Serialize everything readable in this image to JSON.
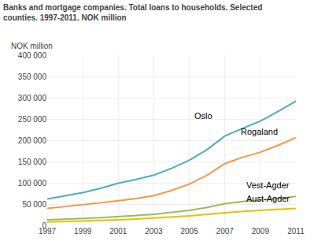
{
  "chart_data": {
    "type": "line",
    "title": "Banks and mortgage companies. Total loans to households. Selected\ncounties. 1997-2011. NOK million",
    "ylabel": "NOK million",
    "x": [
      1997,
      1998,
      1999,
      2000,
      2001,
      2002,
      2003,
      2004,
      2005,
      2006,
      2007,
      2008,
      2009,
      2010,
      2011
    ],
    "series": [
      {
        "name": "Oslo",
        "color": "#4bacc6",
        "values": [
          62000,
          69000,
          77000,
          87000,
          99000,
          108000,
          118000,
          134000,
          153000,
          178000,
          210000,
          228000,
          245000,
          268000,
          292000
        ]
      },
      {
        "name": "Rogaland",
        "color": "#f79646",
        "values": [
          40000,
          44000,
          48000,
          53000,
          58000,
          63000,
          70000,
          82000,
          97000,
          118000,
          145000,
          160000,
          172000,
          188000,
          206000
        ]
      },
      {
        "name": "Vest-Agder",
        "color": "#9bbb59",
        "values": [
          13000,
          14000,
          16000,
          18000,
          20000,
          23000,
          26000,
          30000,
          35000,
          42000,
          51000,
          56000,
          59000,
          63000,
          68000
        ]
      },
      {
        "name": "Aust-Agder",
        "color": "#e8c000",
        "values": [
          8000,
          9000,
          10000,
          11000,
          13000,
          15000,
          17000,
          19000,
          22000,
          26000,
          30000,
          33000,
          35000,
          37000,
          40000
        ]
      }
    ],
    "annotations": [
      {
        "text": "Oslo",
        "x": 2005.2,
        "y": 242000
      },
      {
        "text": "Rogaland",
        "x": 2007.8,
        "y": 205000
      },
      {
        "text": "Vest-Agder",
        "x": 2008.1,
        "y": 79000
      },
      {
        "text": "Aust-Agder",
        "x": 2008.1,
        "y": 48000
      }
    ],
    "xlim": [
      1997,
      2011
    ],
    "xticks": [
      1997,
      1999,
      2001,
      2003,
      2005,
      2007,
      2009,
      2011
    ],
    "ylim": [
      0,
      400000
    ],
    "yticks": [
      0,
      {
        "value": 50000,
        "label": "50 000"
      },
      {
        "value": 100000,
        "label": "100 000"
      },
      {
        "value": 150000,
        "label": "150 000"
      },
      {
        "value": 200000,
        "label": "200 000"
      },
      {
        "value": 250000,
        "label": "250 000"
      },
      {
        "value": 300000,
        "label": "300 000"
      },
      {
        "value": 350000,
        "label": "350 000"
      },
      {
        "value": 400000,
        "label": "400 000"
      }
    ],
    "grid": true
  }
}
